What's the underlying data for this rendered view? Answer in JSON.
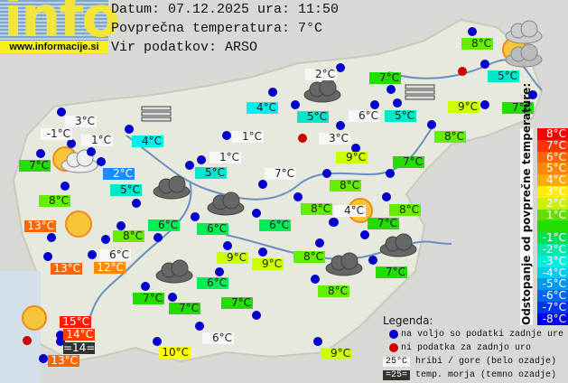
{
  "header": {
    "logo_text": "info",
    "logo_url": "www.informacije.si",
    "date_line": "Datum: 07.12.2025 ura: 11:50",
    "avg_line": "Povprečna temperatura: 7°C",
    "source_line": "Vir podatkov: ARSO"
  },
  "colors": {
    "15": "#ff1a00",
    "14": "#ff3d00",
    "13": "#ff6600",
    "12": "#ff8a00",
    "10": "#ffff00",
    "9": "#ccff00",
    "8": "#66ee00",
    "7": "#22dd00",
    "6": "#00ee55",
    "5": "#00e8cc",
    "4": "#00f0f0",
    "2": "#1a8cff",
    "hill": "#f7f7f7",
    "sea": "#333333",
    "dot_ok": "#0000cc",
    "dot_missing": "#cc0000"
  },
  "stations": [
    {
      "t": "3°C",
      "k": "hill"
    },
    {
      "t": "-1°C",
      "k": "hill"
    },
    {
      "t": "1°C",
      "k": "hill"
    },
    {
      "t": "7°C",
      "k": "7"
    },
    {
      "t": "4°C",
      "k": "4"
    },
    {
      "t": "2°C",
      "k": "2"
    },
    {
      "t": "5°C",
      "k": "5"
    },
    {
      "t": "8°C",
      "k": "8"
    },
    {
      "t": "13°C",
      "k": "13"
    },
    {
      "t": "8°C",
      "k": "8"
    },
    {
      "t": "6°C",
      "k": "6"
    },
    {
      "t": "6°C",
      "k": "hill"
    },
    {
      "t": "12°C",
      "k": "12"
    },
    {
      "t": "13°C",
      "k": "13"
    },
    {
      "t": "4°C",
      "k": "4"
    },
    {
      "t": "1°C",
      "k": "hill"
    },
    {
      "t": "1°C",
      "k": "hill"
    },
    {
      "t": "5°C",
      "k": "5"
    },
    {
      "t": "7°C",
      "k": "hill"
    },
    {
      "t": "6°C",
      "k": "6"
    },
    {
      "t": "6°C",
      "k": "6"
    },
    {
      "t": "2°C",
      "k": "hill"
    },
    {
      "t": "7°C",
      "k": "7"
    },
    {
      "t": "5°C",
      "k": "5"
    },
    {
      "t": "6°C",
      "k": "hill"
    },
    {
      "t": "5°C",
      "k": "5"
    },
    {
      "t": "3°C",
      "k": "hill"
    },
    {
      "t": "8°C",
      "k": "8"
    },
    {
      "t": "5°C",
      "k": "5"
    },
    {
      "t": "9°C",
      "k": "9"
    },
    {
      "t": "7°C",
      "k": "7"
    },
    {
      "t": "8°C",
      "k": "8"
    },
    {
      "t": "9°C",
      "k": "9"
    },
    {
      "t": "7°C",
      "k": "7"
    },
    {
      "t": "8°C",
      "k": "8"
    },
    {
      "t": "8°C",
      "k": "8"
    },
    {
      "t": "4°C",
      "k": "hill"
    },
    {
      "t": "8°C",
      "k": "8"
    },
    {
      "t": "7°C",
      "k": "7"
    },
    {
      "t": "9°C",
      "k": "9"
    },
    {
      "t": "9°C",
      "k": "9"
    },
    {
      "t": "8°C",
      "k": "8"
    },
    {
      "t": "7°C",
      "k": "7"
    },
    {
      "t": "8°C",
      "k": "8"
    },
    {
      "t": "6°C",
      "k": "6"
    },
    {
      "t": "7°C",
      "k": "7"
    },
    {
      "t": "7°C",
      "k": "7"
    },
    {
      "t": "7°C",
      "k": "7"
    },
    {
      "t": "15°C",
      "k": "15"
    },
    {
      "t": "14°C",
      "k": "14"
    },
    {
      "t": "=14=",
      "k": "sea"
    },
    {
      "t": "13°C",
      "k": "13"
    },
    {
      "t": "10°C",
      "k": "10"
    },
    {
      "t": "6°C",
      "k": "hill"
    },
    {
      "t": "9°C",
      "k": "9"
    }
  ],
  "icons": {
    "overcast": "cloud-icon",
    "sunny": "sun-icon",
    "partly_cloudy": "sun-cloud-icon",
    "fog": "fog-icon"
  },
  "scale": {
    "title": "Odstopanje od povprečne temperature:",
    "steps": [
      {
        "label": "8°C",
        "color": "#ff0000"
      },
      {
        "label": "7°C",
        "color": "#ff3300"
      },
      {
        "label": "6°C",
        "color": "#ff6600"
      },
      {
        "label": "5°C",
        "color": "#ff8800"
      },
      {
        "label": "4°C",
        "color": "#ffaa00"
      },
      {
        "label": "3°C",
        "color": "#ffee00"
      },
      {
        "label": "2°C",
        "color": "#ccee00"
      },
      {
        "label": "1°C",
        "color": "#66dd00"
      },
      {
        "label": "",
        "color": "#22dd00"
      },
      {
        "label": "-1°C",
        "color": "#00e055"
      },
      {
        "label": "-2°C",
        "color": "#00e8aa"
      },
      {
        "label": "-3°C",
        "color": "#00eedd"
      },
      {
        "label": "-4°C",
        "color": "#00ccee"
      },
      {
        "label": "-5°C",
        "color": "#0099ee"
      },
      {
        "label": "-6°C",
        "color": "#0066ee"
      },
      {
        "label": "-7°C",
        "color": "#0033ee"
      },
      {
        "label": "-8°C",
        "color": "#0000ee"
      }
    ]
  },
  "legend": {
    "title": "Legenda:",
    "available": "na voljo so podatki zadnje ure",
    "missing": "ni podatka za zadnjo uro",
    "hill_sample": "25°C",
    "hill_text": "hribi / gore (belo ozadje)",
    "sea_sample": "=25=",
    "sea_text": "temp. morja (temno ozadje)"
  }
}
